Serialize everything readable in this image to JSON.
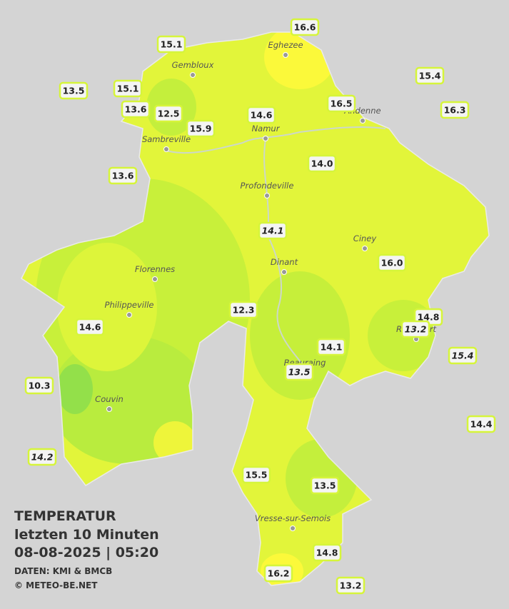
{
  "legend": {
    "title": "TEMPERATUR",
    "subtitle": "letzten 10 Minuten",
    "datetime": "08-08-2025  |  05:20",
    "source": "DATEN: KMI & BMCB",
    "credit": "© METEO-BE.NET"
  },
  "cities": [
    {
      "name": "Eghezee"
    },
    {
      "name": "Gembloux"
    },
    {
      "name": "Andenne"
    },
    {
      "name": "Namur"
    },
    {
      "name": "Sambreville"
    },
    {
      "name": "Profondeville"
    },
    {
      "name": "Ciney"
    },
    {
      "name": "Dinant"
    },
    {
      "name": "Florennes"
    },
    {
      "name": "Philippeville"
    },
    {
      "name": "Rochefort"
    },
    {
      "name": "Beauraing"
    },
    {
      "name": "Couvin"
    },
    {
      "name": "Vresse-sur-Semois"
    }
  ],
  "stations": [
    {
      "text": "16.6",
      "italic": false
    },
    {
      "text": "15.1",
      "italic": false
    },
    {
      "text": "13.5",
      "italic": false
    },
    {
      "text": "15.1",
      "italic": false
    },
    {
      "text": "15.4",
      "italic": false
    },
    {
      "text": "13.6",
      "italic": false
    },
    {
      "text": "12.5",
      "italic": false
    },
    {
      "text": "15.9",
      "italic": false
    },
    {
      "text": "14.6",
      "italic": false
    },
    {
      "text": "16.5",
      "italic": false
    },
    {
      "text": "16.3",
      "italic": false
    },
    {
      "text": "13.6",
      "italic": false
    },
    {
      "text": "14.0",
      "italic": false
    },
    {
      "text": "14.1",
      "italic": true
    },
    {
      "text": "16.0",
      "italic": false
    },
    {
      "text": "12.3",
      "italic": false
    },
    {
      "text": "14.8",
      "italic": false
    },
    {
      "text": "13.2",
      "italic": true
    },
    {
      "text": "14.6",
      "italic": false
    },
    {
      "text": "14.1",
      "italic": false
    },
    {
      "text": "15.4",
      "italic": true
    },
    {
      "text": "13.5",
      "italic": true
    },
    {
      "text": "10.3",
      "italic": false
    },
    {
      "text": "14.4",
      "italic": false
    },
    {
      "text": "14.2",
      "italic": true
    },
    {
      "text": "15.5",
      "italic": false
    },
    {
      "text": "13.5",
      "italic": false
    },
    {
      "text": "14.8",
      "italic": false
    },
    {
      "text": "16.2",
      "italic": false
    },
    {
      "text": "13.2",
      "italic": false
    }
  ]
}
